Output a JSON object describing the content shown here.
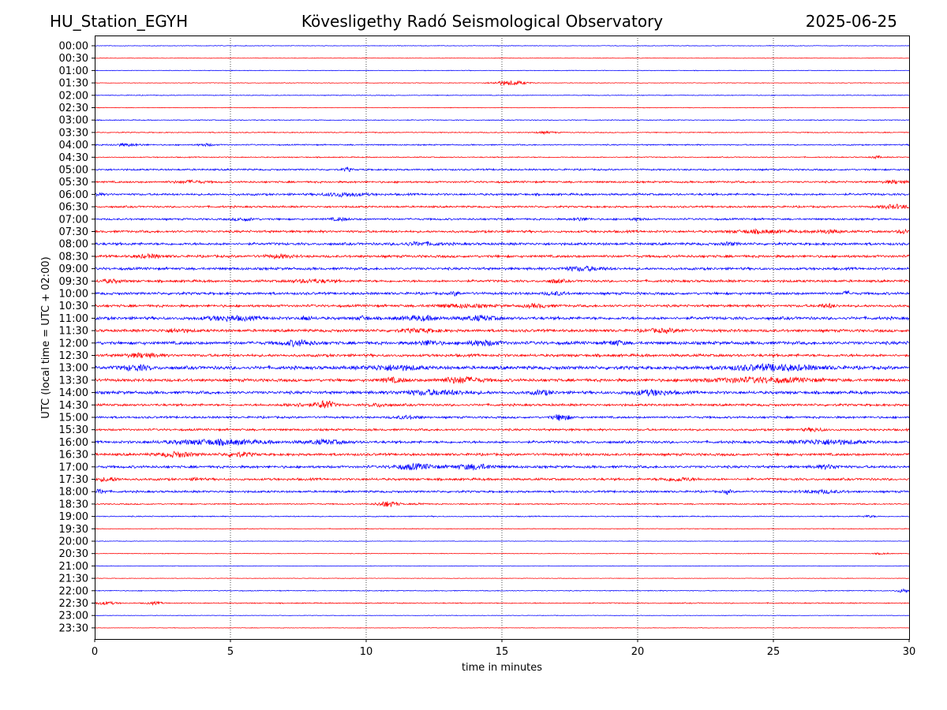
{
  "header": {
    "station": "HU_Station_EGYH",
    "observatory": "Kövesligethy Radó Seismological Observatory",
    "date": "2025-06-25"
  },
  "colors": {
    "even_row": "#0000ff",
    "odd_row": "#ff0000",
    "axes": "#000000",
    "grid": "#000000"
  },
  "chart_data": {
    "type": "line",
    "title": "",
    "xlabel": "time in minutes",
    "ylabel": "UTC (local time = UTC + 02:00)",
    "xlim": [
      0,
      30
    ],
    "xticks": [
      0,
      5,
      10,
      15,
      20,
      25,
      30
    ],
    "grid_x": true,
    "grid_y": false,
    "rows": [
      {
        "label": "00:00",
        "base": 0.6,
        "events": []
      },
      {
        "label": "00:30",
        "base": 0.5,
        "events": []
      },
      {
        "label": "01:00",
        "base": 0.6,
        "events": []
      },
      {
        "label": "01:30",
        "base": 0.6,
        "events": [
          {
            "t": 15.3,
            "amp": 5,
            "dur": 1.2
          }
        ]
      },
      {
        "label": "02:00",
        "base": 0.7,
        "events": []
      },
      {
        "label": "02:30",
        "base": 0.6,
        "events": []
      },
      {
        "label": "03:00",
        "base": 0.8,
        "events": []
      },
      {
        "label": "03:30",
        "base": 0.9,
        "events": [
          {
            "t": 16.6,
            "amp": 2,
            "dur": 0.8
          }
        ]
      },
      {
        "label": "04:00",
        "base": 1.2,
        "events": [
          {
            "t": 1.2,
            "amp": 2.5,
            "dur": 1.2
          },
          {
            "t": 4.1,
            "amp": 2.5,
            "dur": 0.6
          }
        ]
      },
      {
        "label": "04:30",
        "base": 1.0,
        "events": [
          {
            "t": 28.8,
            "amp": 2.5,
            "dur": 0.4
          }
        ]
      },
      {
        "label": "05:00",
        "base": 1.6,
        "events": [
          {
            "t": 9.3,
            "amp": 4,
            "dur": 0.3
          }
        ]
      },
      {
        "label": "05:30",
        "base": 1.8,
        "events": [
          {
            "t": 3.5,
            "amp": 2.5,
            "dur": 1.2
          },
          {
            "t": 29.5,
            "amp": 3,
            "dur": 0.8
          }
        ]
      },
      {
        "label": "06:00",
        "base": 2.0,
        "events": [
          {
            "t": 9.2,
            "amp": 4,
            "dur": 1.5
          },
          {
            "t": 0.1,
            "amp": 3,
            "dur": 0.3
          }
        ]
      },
      {
        "label": "06:30",
        "base": 1.8,
        "events": [
          {
            "t": 29.5,
            "amp": 4,
            "dur": 1.2
          }
        ]
      },
      {
        "label": "07:00",
        "base": 1.8,
        "events": [
          {
            "t": 5.5,
            "amp": 3,
            "dur": 0.8
          },
          {
            "t": 9.0,
            "amp": 3,
            "dur": 0.6
          },
          {
            "t": 17.9,
            "amp": 3,
            "dur": 0.6
          },
          {
            "t": 20.0,
            "amp": 3,
            "dur": 0.4
          }
        ]
      },
      {
        "label": "07:30",
        "base": 2.2,
        "events": [
          {
            "t": 24.5,
            "amp": 3,
            "dur": 2
          },
          {
            "t": 27.0,
            "amp": 3,
            "dur": 1
          },
          {
            "t": 29.8,
            "amp": 4,
            "dur": 0.4
          }
        ]
      },
      {
        "label": "08:00",
        "base": 2.4,
        "events": [
          {
            "t": 12.0,
            "amp": 3,
            "dur": 1.5
          },
          {
            "t": 23.4,
            "amp": 3,
            "dur": 0.5
          }
        ]
      },
      {
        "label": "08:30",
        "base": 2.4,
        "events": [
          {
            "t": 2.0,
            "amp": 3,
            "dur": 1
          },
          {
            "t": 6.8,
            "amp": 3,
            "dur": 1
          }
        ]
      },
      {
        "label": "09:00",
        "base": 2.4,
        "events": [
          {
            "t": 18.0,
            "amp": 4,
            "dur": 1.5
          }
        ]
      },
      {
        "label": "09:30",
        "base": 2.3,
        "events": [
          {
            "t": 0.6,
            "amp": 3,
            "dur": 0.8
          },
          {
            "t": 8.0,
            "amp": 3,
            "dur": 1.5
          },
          {
            "t": 17.0,
            "amp": 3.5,
            "dur": 0.6
          }
        ]
      },
      {
        "label": "10:00",
        "base": 2.4,
        "events": [
          {
            "t": 13.3,
            "amp": 4,
            "dur": 0.3
          },
          {
            "t": 17.0,
            "amp": 3,
            "dur": 0.8
          },
          {
            "t": 27.7,
            "amp": 3.5,
            "dur": 0.3
          }
        ]
      },
      {
        "label": "10:30",
        "base": 2.4,
        "events": [
          {
            "t": 13.5,
            "amp": 3,
            "dur": 2
          },
          {
            "t": 16.3,
            "amp": 3,
            "dur": 1
          },
          {
            "t": 27.0,
            "amp": 3.5,
            "dur": 0.6
          }
        ]
      },
      {
        "label": "11:00",
        "base": 2.8,
        "events": [
          {
            "t": 5.0,
            "amp": 4,
            "dur": 2
          },
          {
            "t": 7.8,
            "amp": 4,
            "dur": 0.4
          },
          {
            "t": 9.9,
            "amp": 4,
            "dur": 0.4
          },
          {
            "t": 12.0,
            "amp": 4,
            "dur": 1.5
          },
          {
            "t": 14.2,
            "amp": 4.5,
            "dur": 1.2
          }
        ]
      },
      {
        "label": "11:30",
        "base": 2.6,
        "events": [
          {
            "t": 3.0,
            "amp": 3,
            "dur": 1
          },
          {
            "t": 12.0,
            "amp": 3,
            "dur": 1.5
          },
          {
            "t": 21.0,
            "amp": 3,
            "dur": 1.5
          }
        ]
      },
      {
        "label": "12:00",
        "base": 3.0,
        "events": [
          {
            "t": 7.5,
            "amp": 5,
            "dur": 1.2
          },
          {
            "t": 12.3,
            "amp": 4.5,
            "dur": 0.8
          },
          {
            "t": 14.3,
            "amp": 4.5,
            "dur": 1.2
          },
          {
            "t": 19.2,
            "amp": 4.5,
            "dur": 0.6
          }
        ]
      },
      {
        "label": "12:30",
        "base": 2.6,
        "events": [
          {
            "t": 1.8,
            "amp": 4,
            "dur": 1.2
          }
        ]
      },
      {
        "label": "13:00",
        "base": 3.2,
        "events": [
          {
            "t": 1.5,
            "amp": 5,
            "dur": 1
          },
          {
            "t": 11.0,
            "amp": 4.5,
            "dur": 2
          },
          {
            "t": 25.0,
            "amp": 5.5,
            "dur": 3.5
          }
        ]
      },
      {
        "label": "13:30",
        "base": 2.8,
        "events": [
          {
            "t": 11.0,
            "amp": 4,
            "dur": 1
          },
          {
            "t": 13.5,
            "amp": 6,
            "dur": 1.5
          },
          {
            "t": 24.5,
            "amp": 4.5,
            "dur": 4
          }
        ]
      },
      {
        "label": "14:00",
        "base": 2.8,
        "events": [
          {
            "t": 12.5,
            "amp": 4.5,
            "dur": 2.5
          },
          {
            "t": 16.5,
            "amp": 4,
            "dur": 0.8
          },
          {
            "t": 20.5,
            "amp": 5,
            "dur": 1.5
          }
        ]
      },
      {
        "label": "14:30",
        "base": 2.2,
        "events": [
          {
            "t": 8.5,
            "amp": 9,
            "dur": 0.6
          },
          {
            "t": 7.5,
            "amp": 3,
            "dur": 1
          },
          {
            "t": 10.5,
            "amp": 3,
            "dur": 0.8
          }
        ]
      },
      {
        "label": "15:00",
        "base": 2.0,
        "events": [
          {
            "t": 17.2,
            "amp": 7,
            "dur": 0.6
          },
          {
            "t": 11.5,
            "amp": 3,
            "dur": 1
          }
        ]
      },
      {
        "label": "15:30",
        "base": 2.0,
        "events": [
          {
            "t": 26.5,
            "amp": 3,
            "dur": 0.8
          }
        ]
      },
      {
        "label": "16:00",
        "base": 2.4,
        "events": [
          {
            "t": 4.5,
            "amp": 5,
            "dur": 3.5
          },
          {
            "t": 8.5,
            "amp": 4,
            "dur": 1.5
          },
          {
            "t": 27.0,
            "amp": 4.5,
            "dur": 2.5
          }
        ]
      },
      {
        "label": "16:30",
        "base": 2.4,
        "events": [
          {
            "t": 3.0,
            "amp": 5,
            "dur": 1.2
          },
          {
            "t": 5.3,
            "amp": 4,
            "dur": 1
          }
        ]
      },
      {
        "label": "17:00",
        "base": 2.4,
        "events": [
          {
            "t": 11.8,
            "amp": 5.5,
            "dur": 1.5
          },
          {
            "t": 14.0,
            "amp": 5,
            "dur": 1.5
          },
          {
            "t": 27.0,
            "amp": 3.5,
            "dur": 1
          }
        ]
      },
      {
        "label": "17:30",
        "base": 2.2,
        "events": [
          {
            "t": 0.5,
            "amp": 3.5,
            "dur": 0.8
          },
          {
            "t": 3.8,
            "amp": 3,
            "dur": 0.4
          },
          {
            "t": 21.5,
            "amp": 3.5,
            "dur": 1.2
          }
        ]
      },
      {
        "label": "18:00",
        "base": 2.0,
        "events": [
          {
            "t": 0.2,
            "amp": 4,
            "dur": 0.5
          },
          {
            "t": 23.3,
            "amp": 4,
            "dur": 0.3
          },
          {
            "t": 26.8,
            "amp": 3,
            "dur": 1.5
          }
        ]
      },
      {
        "label": "18:30",
        "base": 1.2,
        "events": [
          {
            "t": 10.8,
            "amp": 6,
            "dur": 0.8
          },
          {
            "t": 12.0,
            "amp": 3,
            "dur": 0.3
          }
        ]
      },
      {
        "label": "19:00",
        "base": 1.0,
        "events": [
          {
            "t": 28.5,
            "amp": 2,
            "dur": 0.5
          }
        ]
      },
      {
        "label": "19:30",
        "base": 0.7,
        "events": []
      },
      {
        "label": "20:00",
        "base": 0.5,
        "events": []
      },
      {
        "label": "20:30",
        "base": 0.6,
        "events": [
          {
            "t": 29.0,
            "amp": 1.5,
            "dur": 0.6
          }
        ]
      },
      {
        "label": "21:00",
        "base": 0.5,
        "events": []
      },
      {
        "label": "21:30",
        "base": 0.5,
        "events": []
      },
      {
        "label": "22:00",
        "base": 0.8,
        "events": [
          {
            "t": 29.8,
            "amp": 4,
            "dur": 0.5
          }
        ]
      },
      {
        "label": "22:30",
        "base": 1.0,
        "events": [
          {
            "t": 0.4,
            "amp": 3,
            "dur": 0.8
          },
          {
            "t": 2.2,
            "amp": 2.5,
            "dur": 0.6
          }
        ]
      },
      {
        "label": "23:00",
        "base": 0.5,
        "events": []
      },
      {
        "label": "23:30",
        "base": 0.5,
        "events": []
      }
    ]
  }
}
